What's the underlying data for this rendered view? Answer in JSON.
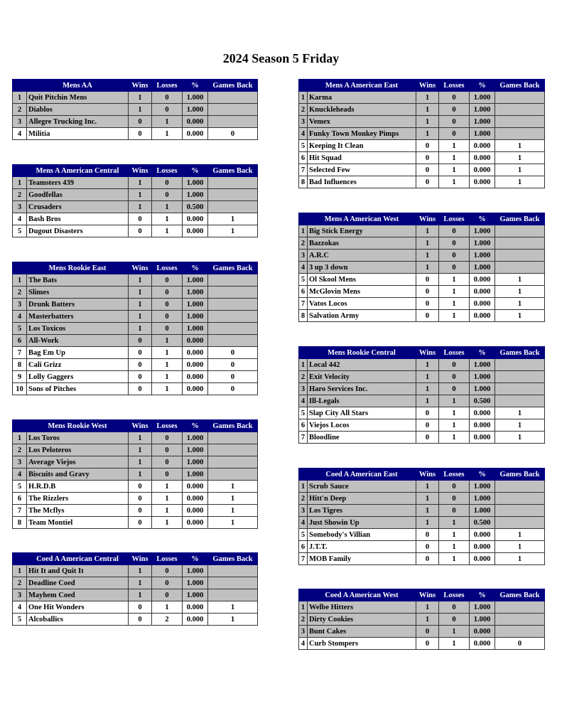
{
  "page": {
    "title": "2024 Season 5 Friday"
  },
  "colors": {
    "header_bg": "#00007f",
    "header_text": "#ffffff",
    "highlight_row": "#c0c0c0"
  },
  "columns": {
    "wins": "Wins",
    "losses": "Losses",
    "pct": "%",
    "games_back": "Games Back"
  },
  "left_tables": [
    {
      "name": "Mens AA",
      "rows": [
        {
          "rank": "1",
          "team": "Quit Pitchin Mens",
          "w": "1",
          "l": "0",
          "pct": "1.000",
          "gb": "",
          "hl": true
        },
        {
          "rank": "2",
          "team": "Diablos",
          "w": "1",
          "l": "0",
          "pct": "1.000",
          "gb": "",
          "hl": true
        },
        {
          "rank": "3",
          "team": "Allegre Trucking Inc.",
          "w": "0",
          "l": "1",
          "pct": "0.000",
          "gb": "",
          "hl": true
        },
        {
          "rank": "4",
          "team": "Militia",
          "w": "0",
          "l": "1",
          "pct": "0.000",
          "gb": "0",
          "hl": false
        }
      ]
    },
    {
      "name": "Mens A American Central",
      "rows": [
        {
          "rank": "1",
          "team": "Teamsters 439",
          "w": "1",
          "l": "0",
          "pct": "1.000",
          "gb": "",
          "hl": true
        },
        {
          "rank": "2",
          "team": "Goodfellas",
          "w": "1",
          "l": "0",
          "pct": "1.000",
          "gb": "",
          "hl": true
        },
        {
          "rank": "3",
          "team": "Crusaders",
          "w": "1",
          "l": "1",
          "pct": "0.500",
          "gb": "",
          "hl": true
        },
        {
          "rank": "4",
          "team": "Bash Bros",
          "w": "0",
          "l": "1",
          "pct": "0.000",
          "gb": "1",
          "hl": false
        },
        {
          "rank": "5",
          "team": "Dugout Disasters",
          "w": "0",
          "l": "1",
          "pct": "0.000",
          "gb": "1",
          "hl": false
        }
      ]
    },
    {
      "name": "Mens Rookie East",
      "rows": [
        {
          "rank": "1",
          "team": "The Bats",
          "w": "1",
          "l": "0",
          "pct": "1.000",
          "gb": "",
          "hl": true
        },
        {
          "rank": "2",
          "team": "Slimes",
          "w": "1",
          "l": "0",
          "pct": "1.000",
          "gb": "",
          "hl": true
        },
        {
          "rank": "3",
          "team": "Drunk Batters",
          "w": "1",
          "l": "0",
          "pct": "1.000",
          "gb": "",
          "hl": true
        },
        {
          "rank": "4",
          "team": "Masterbatters",
          "w": "1",
          "l": "0",
          "pct": "1.000",
          "gb": "",
          "hl": true
        },
        {
          "rank": "5",
          "team": "Los Toxicos",
          "w": "1",
          "l": "0",
          "pct": "1.000",
          "gb": "",
          "hl": true
        },
        {
          "rank": "6",
          "team": "All-Work",
          "w": "0",
          "l": "1",
          "pct": "0.000",
          "gb": "",
          "hl": true
        },
        {
          "rank": "7",
          "team": "Bag Em Up",
          "w": "0",
          "l": "1",
          "pct": "0.000",
          "gb": "0",
          "hl": false
        },
        {
          "rank": "8",
          "team": "Cali Grizz",
          "w": "0",
          "l": "1",
          "pct": "0.000",
          "gb": "0",
          "hl": false
        },
        {
          "rank": "9",
          "team": "Lolly Gaggers",
          "w": "0",
          "l": "1",
          "pct": "0.000",
          "gb": "0",
          "hl": false
        },
        {
          "rank": "10",
          "team": "Sons of Pitches",
          "w": "0",
          "l": "1",
          "pct": "0.000",
          "gb": "0",
          "hl": false
        }
      ]
    },
    {
      "name": "Mens Rookie West",
      "rows": [
        {
          "rank": "1",
          "team": "Los Toros",
          "w": "1",
          "l": "0",
          "pct": "1.000",
          "gb": "",
          "hl": true
        },
        {
          "rank": "2",
          "team": "Los Peloteros",
          "w": "1",
          "l": "0",
          "pct": "1.000",
          "gb": "",
          "hl": true
        },
        {
          "rank": "3",
          "team": "Average Viejos",
          "w": "1",
          "l": "0",
          "pct": "1.000",
          "gb": "",
          "hl": true
        },
        {
          "rank": "4",
          "team": "Biscuits and Gravy",
          "w": "1",
          "l": "0",
          "pct": "1.000",
          "gb": "",
          "hl": true
        },
        {
          "rank": "5",
          "team": "H.R.D.B",
          "w": "0",
          "l": "1",
          "pct": "0.000",
          "gb": "1",
          "hl": false
        },
        {
          "rank": "6",
          "team": "The Rizzlers",
          "w": "0",
          "l": "1",
          "pct": "0.000",
          "gb": "1",
          "hl": false
        },
        {
          "rank": "7",
          "team": "The Mcflys",
          "w": "0",
          "l": "1",
          "pct": "0.000",
          "gb": "1",
          "hl": false
        },
        {
          "rank": "8",
          "team": "Team Montiel",
          "w": "0",
          "l": "1",
          "pct": "0.000",
          "gb": "1",
          "hl": false
        }
      ]
    },
    {
      "name": "Coed A American Central",
      "rows": [
        {
          "rank": "1",
          "team": "Hit It and Quit It",
          "w": "1",
          "l": "0",
          "pct": "1.000",
          "gb": "",
          "hl": true
        },
        {
          "rank": "2",
          "team": "Deadline Coed",
          "w": "1",
          "l": "0",
          "pct": "1.000",
          "gb": "",
          "hl": true
        },
        {
          "rank": "3",
          "team": "Mayhem Coed",
          "w": "1",
          "l": "0",
          "pct": "1.000",
          "gb": "",
          "hl": true
        },
        {
          "rank": "4",
          "team": "One Hit Wonders",
          "w": "0",
          "l": "1",
          "pct": "0.000",
          "gb": "1",
          "hl": false
        },
        {
          "rank": "5",
          "team": "Alcoballics",
          "w": "0",
          "l": "2",
          "pct": "0.000",
          "gb": "1",
          "hl": false
        }
      ]
    }
  ],
  "right_tables": [
    {
      "name": "Mens A American East",
      "rows": [
        {
          "rank": "1",
          "team": "Karma",
          "w": "1",
          "l": "0",
          "pct": "1.000",
          "gb": "",
          "hl": true
        },
        {
          "rank": "2",
          "team": "Knuckleheads",
          "w": "1",
          "l": "0",
          "pct": "1.000",
          "gb": "",
          "hl": true
        },
        {
          "rank": "3",
          "team": "Vemex",
          "w": "1",
          "l": "0",
          "pct": "1.000",
          "gb": "",
          "hl": true
        },
        {
          "rank": "4",
          "team": "Funky Town Monkey Pimps",
          "w": "1",
          "l": "0",
          "pct": "1.000",
          "gb": "",
          "hl": true
        },
        {
          "rank": "5",
          "team": "Keeping It Clean",
          "w": "0",
          "l": "1",
          "pct": "0.000",
          "gb": "1",
          "hl": false
        },
        {
          "rank": "6",
          "team": "Hit Squad",
          "w": "0",
          "l": "1",
          "pct": "0.000",
          "gb": "1",
          "hl": false
        },
        {
          "rank": "7",
          "team": "Selected Few",
          "w": "0",
          "l": "1",
          "pct": "0.000",
          "gb": "1",
          "hl": false
        },
        {
          "rank": "8",
          "team": "Bad Influences",
          "w": "0",
          "l": "1",
          "pct": "0.000",
          "gb": "1",
          "hl": false
        }
      ]
    },
    {
      "name": "Mens A American West",
      "rows": [
        {
          "rank": "1",
          "team": "Big Stick Energy",
          "w": "1",
          "l": "0",
          "pct": "1.000",
          "gb": "",
          "hl": true
        },
        {
          "rank": "2",
          "team": "Bazzokas",
          "w": "1",
          "l": "0",
          "pct": "1.000",
          "gb": "",
          "hl": true
        },
        {
          "rank": "3",
          "team": "A.R.C",
          "w": "1",
          "l": "0",
          "pct": "1.000",
          "gb": "",
          "hl": true
        },
        {
          "rank": "4",
          "team": "3 up 3 down",
          "w": "1",
          "l": "0",
          "pct": "1.000",
          "gb": "",
          "hl": true
        },
        {
          "rank": "5",
          "team": "Ol Skool Mens",
          "w": "0",
          "l": "1",
          "pct": "0.000",
          "gb": "1",
          "hl": false
        },
        {
          "rank": "6",
          "team": "McGlovin Mens",
          "w": "0",
          "l": "1",
          "pct": "0.000",
          "gb": "1",
          "hl": false
        },
        {
          "rank": "7",
          "team": "Vatos Locos",
          "w": "0",
          "l": "1",
          "pct": "0.000",
          "gb": "1",
          "hl": false
        },
        {
          "rank": "8",
          "team": "Salvation Army",
          "w": "0",
          "l": "1",
          "pct": "0.000",
          "gb": "1",
          "hl": false
        }
      ]
    },
    {
      "name": "Mens Rookie Central",
      "rows": [
        {
          "rank": "1",
          "team": "Local 442",
          "w": "1",
          "l": "0",
          "pct": "1.000",
          "gb": "",
          "hl": true
        },
        {
          "rank": "2",
          "team": "Exit Velocity",
          "w": "1",
          "l": "0",
          "pct": "1.000",
          "gb": "",
          "hl": true
        },
        {
          "rank": "3",
          "team": "Haro Services Inc.",
          "w": "1",
          "l": "0",
          "pct": "1.000",
          "gb": "",
          "hl": true
        },
        {
          "rank": "4",
          "team": "Ill-Legals",
          "w": "1",
          "l": "1",
          "pct": "0.500",
          "gb": "",
          "hl": true
        },
        {
          "rank": "5",
          "team": "Slap City All Stars",
          "w": "0",
          "l": "1",
          "pct": "0.000",
          "gb": "1",
          "hl": false
        },
        {
          "rank": "6",
          "team": "Viejos Locos",
          "w": "0",
          "l": "1",
          "pct": "0.000",
          "gb": "1",
          "hl": false
        },
        {
          "rank": "7",
          "team": "Bloodline",
          "w": "0",
          "l": "1",
          "pct": "0.000",
          "gb": "1",
          "hl": false
        }
      ]
    },
    {
      "name": "Coed A American East",
      "rows": [
        {
          "rank": "1",
          "team": "Scrub Sauce",
          "w": "1",
          "l": "0",
          "pct": "1.000",
          "gb": "",
          "hl": true
        },
        {
          "rank": "2",
          "team": "Hitt'n Deep",
          "w": "1",
          "l": "0",
          "pct": "1.000",
          "gb": "",
          "hl": true
        },
        {
          "rank": "3",
          "team": "Los Tigres",
          "w": "1",
          "l": "0",
          "pct": "1.000",
          "gb": "",
          "hl": true
        },
        {
          "rank": "4",
          "team": "Just Showin Up",
          "w": "1",
          "l": "1",
          "pct": "0.500",
          "gb": "",
          "hl": true
        },
        {
          "rank": "5",
          "team": "Somebody's Villian",
          "w": "0",
          "l": "1",
          "pct": "0.000",
          "gb": "1",
          "hl": false
        },
        {
          "rank": "6",
          "team": "J.T.T.",
          "w": "0",
          "l": "1",
          "pct": "0.000",
          "gb": "1",
          "hl": false
        },
        {
          "rank": "7",
          "team": "MOB Family",
          "w": "0",
          "l": "1",
          "pct": "0.000",
          "gb": "1",
          "hl": false
        }
      ]
    },
    {
      "name": "Coed A American West",
      "rows": [
        {
          "rank": "1",
          "team": "Welbe Hitters",
          "w": "1",
          "l": "0",
          "pct": "1.000",
          "gb": "",
          "hl": true
        },
        {
          "rank": "2",
          "team": "Dirty Cookies",
          "w": "1",
          "l": "0",
          "pct": "1.000",
          "gb": "",
          "hl": true
        },
        {
          "rank": "3",
          "team": "Bunt Cakes",
          "w": "0",
          "l": "1",
          "pct": "0.000",
          "gb": "",
          "hl": true
        },
        {
          "rank": "4",
          "team": "Curb Stompers",
          "w": "0",
          "l": "1",
          "pct": "0.000",
          "gb": "0",
          "hl": false
        }
      ]
    }
  ]
}
